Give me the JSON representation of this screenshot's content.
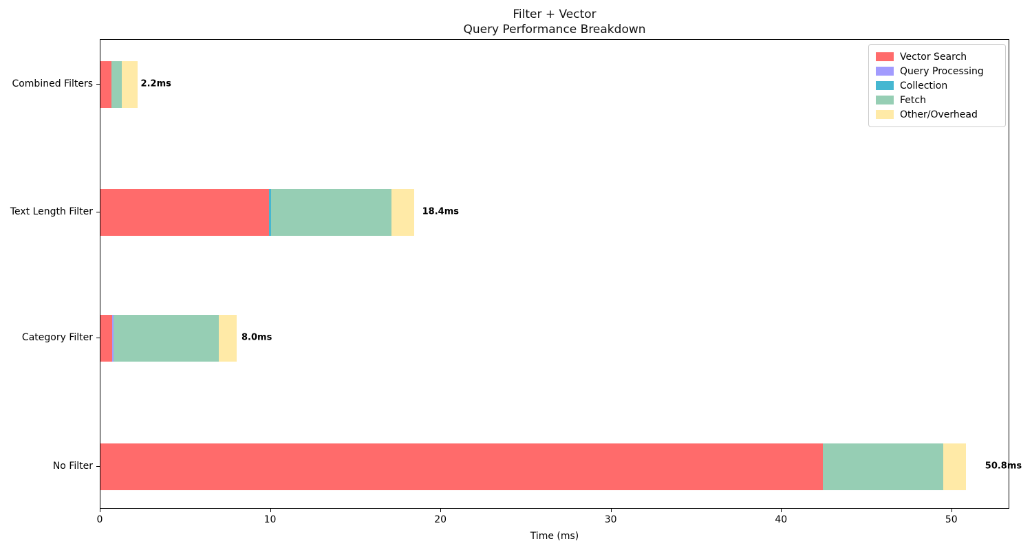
{
  "figure": {
    "title_line1": "Filter + Vector",
    "title_line2": "Query Performance Breakdown",
    "xlabel": "Time (ms)"
  },
  "chart_data": {
    "type": "bar",
    "orientation": "horizontal-stacked",
    "title": "Filter + Vector\nQuery Performance Breakdown",
    "xlabel": "Time (ms)",
    "ylabel": "",
    "grid": false,
    "legend_position": "upper-right",
    "xlim": [
      0,
      53.4
    ],
    "xticks": [
      0,
      10,
      20,
      30,
      40,
      50
    ],
    "categories": [
      "Combined Filters",
      "Text Length Filter",
      "Category Filter",
      "No Filter"
    ],
    "series": [
      {
        "name": "Vector Search",
        "color": "#FF6B6B",
        "values": [
          0.65,
          9.9,
          0.7,
          42.4
        ]
      },
      {
        "name": "Query Processing",
        "color": "#A29BFE",
        "values": [
          0.0,
          0.0,
          0.05,
          0.0
        ]
      },
      {
        "name": "Collection",
        "color": "#45B7D1",
        "values": [
          0.0,
          0.1,
          0.0,
          0.0
        ]
      },
      {
        "name": "Fetch",
        "color": "#96CEB4",
        "values": [
          0.6,
          7.1,
          6.2,
          7.1
        ]
      },
      {
        "name": "Other/Overhead",
        "color": "#FFEAA7",
        "values": [
          0.95,
          1.3,
          1.05,
          1.3
        ]
      }
    ],
    "totals": [
      2.2,
      18.4,
      8.0,
      50.8
    ],
    "total_labels": [
      "2.2ms",
      "18.4ms",
      "8.0ms",
      "50.8ms"
    ]
  }
}
